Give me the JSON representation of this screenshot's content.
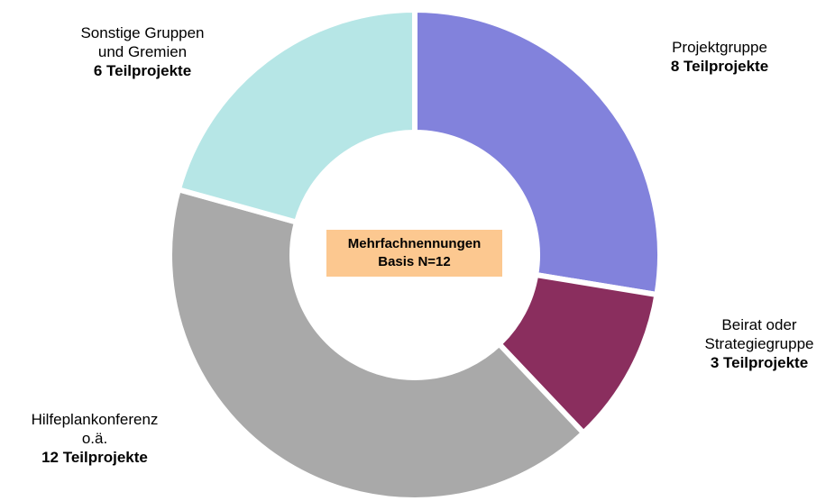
{
  "chart_data": {
    "type": "donut",
    "categories": [
      "Projektgruppe",
      "Beirat oder\nStrategiegruppe",
      "Hilfeplankonferenz\no.ä.",
      "Sonstige Gruppen\nund Gremien"
    ],
    "values": [
      8,
      3,
      12,
      6
    ],
    "value_labels": [
      "8 Teilprojekte",
      "3 Teilprojekte",
      "12 Teilprojekte",
      "6 Teilprojekte"
    ],
    "colors": [
      "#8282dc",
      "#8a2e5e",
      "#a9a9a9",
      "#b6e6e6"
    ],
    "annotation": "Mehrfachnennungen\nBasis N=12"
  }
}
